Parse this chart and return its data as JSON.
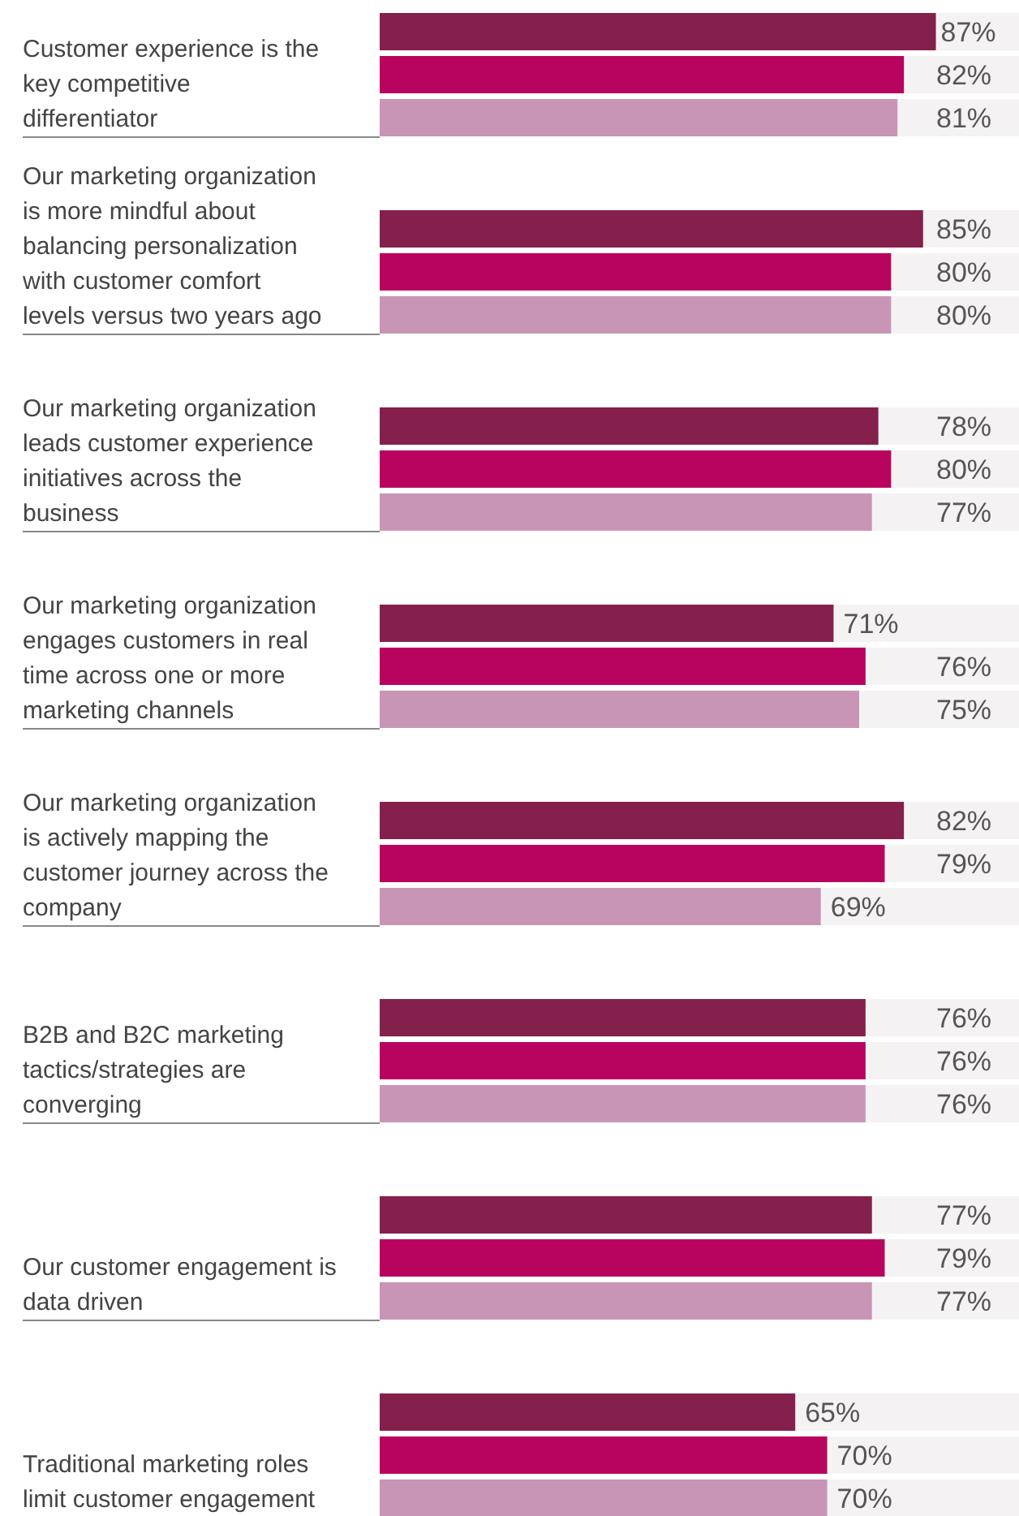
{
  "chart_data": {
    "type": "bar",
    "orientation": "horizontal",
    "categories": [
      "Customer experience is the key competitive differentiator",
      "Our marketing organization is more mindful about balancing personalization with customer comfort levels versus two years ago",
      "Our marketing organization leads customer experience initiatives across the business",
      "Our marketing organization engages customers in real time across one or more marketing channels",
      "Our marketing organization is actively mapping the customer journey across the company",
      "B2B and B2C marketing tactics/strategies are converging",
      "Our customer engagement is data driven",
      "Traditional marketing roles limit customer engagement"
    ],
    "series": [
      {
        "color": "#85204c",
        "values": [
          87,
          85,
          78,
          71,
          82,
          76,
          77,
          65
        ],
        "value_labels": [
          "87%",
          "85%",
          "78%",
          "71%",
          "82%",
          "76%",
          "77%",
          "65%"
        ]
      },
      {
        "color": "#b8045e",
        "values": [
          82,
          80,
          80,
          76,
          79,
          76,
          79,
          70
        ],
        "value_labels": [
          "82%",
          "80%",
          "80%",
          "76%",
          "79%",
          "76%",
          "79%",
          "70%"
        ]
      },
      {
        "color": "#c995b6",
        "values": [
          81,
          80,
          77,
          75,
          69,
          76,
          77,
          70
        ],
        "value_labels": [
          "81%",
          "80%",
          "77%",
          "75%",
          "69%",
          "76%",
          "77%",
          "70%"
        ]
      }
    ],
    "xlim": [
      0,
      100
    ]
  }
}
